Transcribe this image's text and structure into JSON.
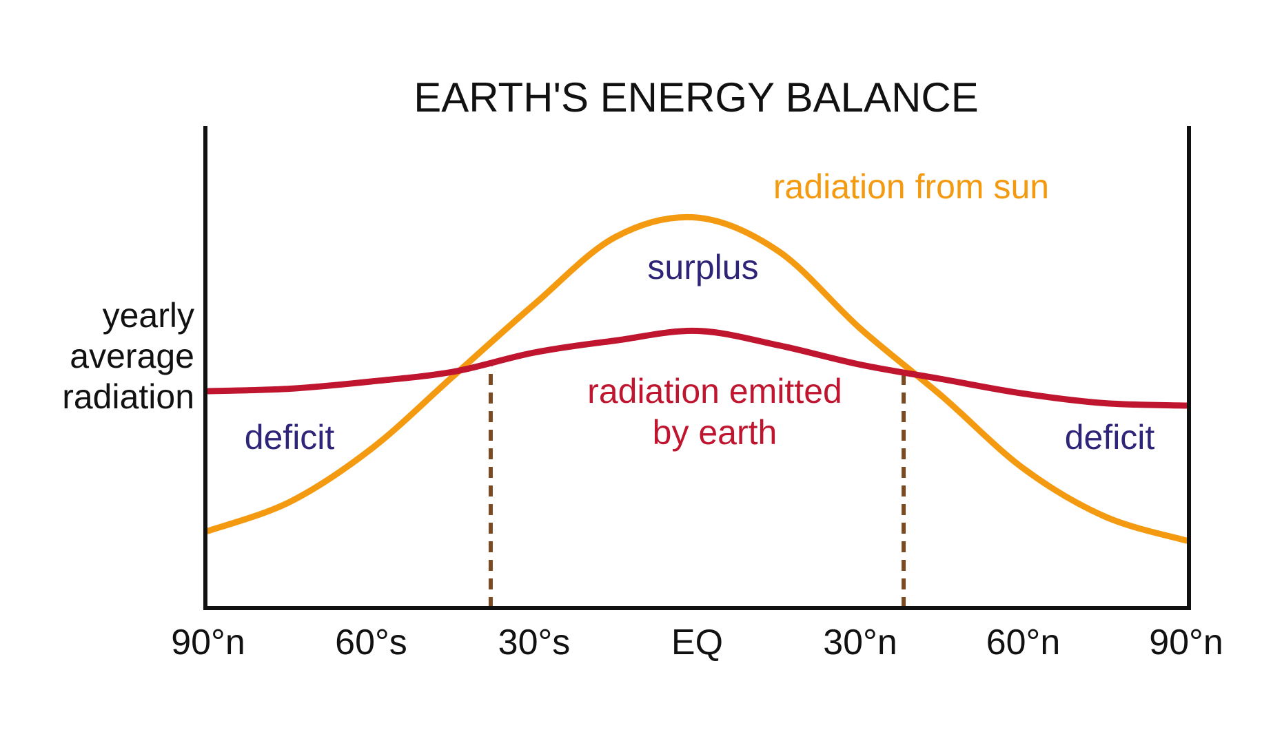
{
  "chart_data": {
    "type": "line",
    "title": "EARTH'S ENERGY BALANCE",
    "ylabel": [
      "yearly",
      "average",
      "radiation"
    ],
    "xlabel": "",
    "x_ticks": [
      "90°n",
      "60°s",
      "30°s",
      "EQ",
      "30°n",
      "60°n",
      "90°n"
    ],
    "xlim": [
      -90,
      90
    ],
    "ylim": [
      0,
      100
    ],
    "grid": false,
    "series": [
      {
        "name": "radiation from sun",
        "color": "#f39a10",
        "x": [
          -90,
          -75,
          -60,
          -45,
          -30,
          -15,
          0,
          15,
          30,
          45,
          60,
          75,
          90
        ],
        "y": [
          16,
          22,
          33,
          48,
          63,
          77,
          81,
          74,
          58,
          44,
          29,
          19,
          14
        ]
      },
      {
        "name": "radiation emitted by earth",
        "color": "#c0152f",
        "x": [
          -90,
          -75,
          -60,
          -45,
          -30,
          -15,
          0,
          15,
          30,
          45,
          60,
          75,
          90
        ],
        "y": [
          45,
          45.5,
          47,
          49,
          53,
          55.5,
          57.5,
          54.5,
          50.5,
          47.5,
          44.5,
          42.5,
          42
        ]
      }
    ],
    "crossover_lines": [
      {
        "x": -38,
        "color": "#7a4a22"
      },
      {
        "x": 38,
        "color": "#7a4a22"
      }
    ],
    "annotations": [
      {
        "id": "sun",
        "text": "radiation from sun",
        "color": "#f39a10"
      },
      {
        "id": "surplus",
        "text": "surplus",
        "color": "#2e2478"
      },
      {
        "id": "emitted1",
        "text": "radiation emitted",
        "color": "#c0152f"
      },
      {
        "id": "emitted2",
        "text": "by earth",
        "color": "#c0152f"
      },
      {
        "id": "deficit_left",
        "text": "deficit",
        "color": "#2e2478"
      },
      {
        "id": "deficit_right",
        "text": "deficit",
        "color": "#2e2478"
      }
    ]
  }
}
